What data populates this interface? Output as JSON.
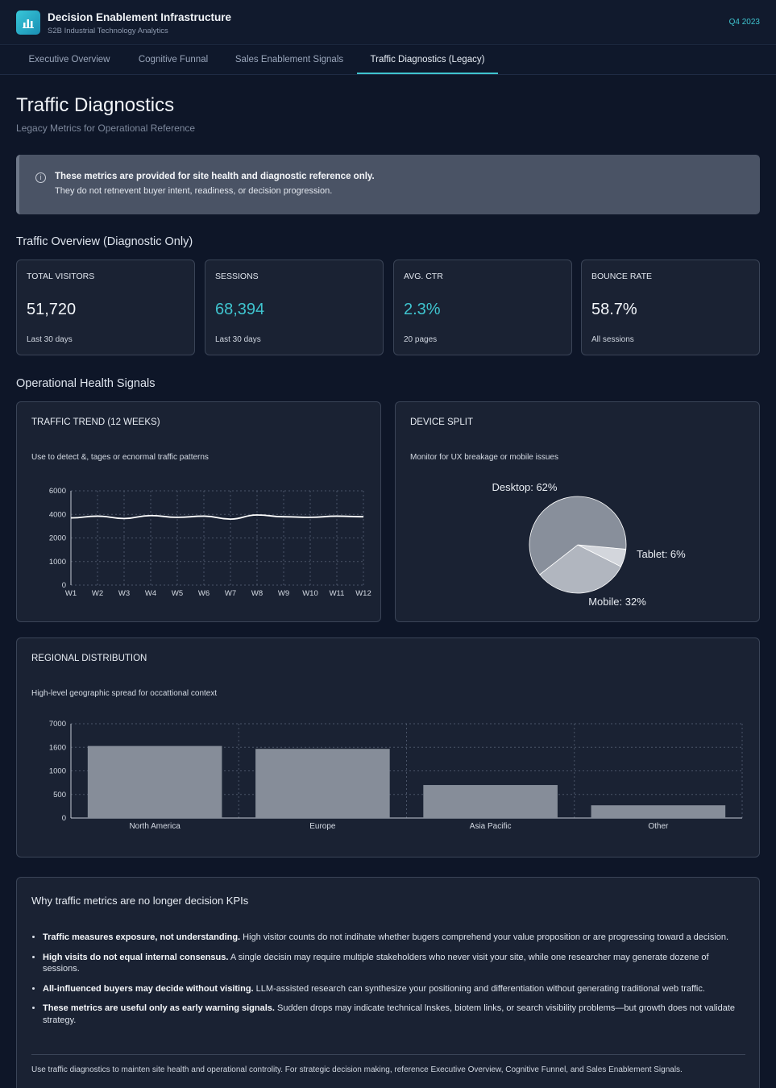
{
  "header": {
    "icon": "bar-chart-icon",
    "title": "Decision Enablement Infrastructure",
    "subtitle": "S2B Industrial Technology Analytics",
    "period": "Q4 2023",
    "accent": "#3fc4cf"
  },
  "tabs": [
    {
      "label": "Executive Overview",
      "active": false
    },
    {
      "label": "Cognitive Funnal",
      "active": false
    },
    {
      "label": "Sales Enablement Signals",
      "active": false
    },
    {
      "label": "Traffic Diagnostics (Legacy)",
      "active": true
    }
  ],
  "page": {
    "title": "Traffic Diagnostics",
    "subtitle": "Legacy Metrics for Operational Reference"
  },
  "notice": {
    "icon": "info-icon",
    "bold": "These metrics are provided for site health and diagnostic reference only.",
    "text": "They do not retnevent buyer intent, readiness, or decision progression."
  },
  "overview": {
    "title": "Traffic Overview (Diagnostic Only)",
    "kpis": [
      {
        "label": "TOTAL VISITORS",
        "value": "51,720",
        "note": "Last 30 days",
        "accent": false
      },
      {
        "label": "SESSIONS",
        "value": "68,394",
        "note": "Last 30 days",
        "accent": true
      },
      {
        "label": "AVG. CTR",
        "value": "2.3%",
        "note": "20 pages",
        "accent": true
      },
      {
        "label": "BOUNCE RATE",
        "value": "58.7%",
        "note": "All sessions",
        "accent": false
      }
    ]
  },
  "health": {
    "title": "Operational Health Signals",
    "trend": {
      "title": "TRAFFIC TREND (12 WEEKS)",
      "note": "Use to detect &, tages or ecnormal traffic patterns"
    },
    "device": {
      "title": "DEVICE SPLIT",
      "note": "Monitor for UX breakage or mobile issues"
    },
    "regional": {
      "title": "REGIONAL DISTRIBUTION",
      "note": "High-level geographic spread for occattional context"
    }
  },
  "chart_data": [
    {
      "type": "line",
      "title": "TRAFFIC TREND (12 WEEKS)",
      "x": [
        "W1",
        "W2",
        "W3",
        "W4",
        "W5",
        "W6",
        "W7",
        "W8",
        "W9",
        "W10",
        "W11",
        "W12"
      ],
      "values": [
        3700,
        3850,
        3650,
        3900,
        3750,
        3850,
        3600,
        3950,
        3800,
        3750,
        3850,
        3800
      ],
      "yticks": [
        0,
        1000,
        2000,
        4000,
        6000
      ],
      "yticklabels": [
        "0",
        "1000",
        "2000",
        "4000",
        "6000"
      ],
      "grid": true,
      "line_color": "#ffffff"
    },
    {
      "type": "pie",
      "title": "DEVICE SPLIT",
      "labels": [
        "Desktop",
        "Mobile",
        "Tablet"
      ],
      "values": [
        62,
        32,
        6
      ],
      "display_labels": [
        "Desktop: 62%",
        "Mobile: 32%",
        "Tablet: 6%"
      ],
      "colors": [
        "#888f9b",
        "#b1b6bf",
        "#d3d6dc"
      ]
    },
    {
      "type": "bar",
      "title": "REGIONAL DISTRIBUTION",
      "categories": [
        "North America",
        "Europe",
        "Asia Pacific",
        "Other"
      ],
      "values": [
        1900,
        1560,
        700,
        270
      ],
      "yticks": [
        0,
        500,
        1000,
        1600,
        7000
      ],
      "yticklabels": [
        "0",
        "500",
        "1000",
        "1600",
        "7000"
      ],
      "grid": true,
      "bar_color": "#868d99"
    }
  ],
  "why": {
    "title": "Why traffic metrics are no longer decision KPIs",
    "items": [
      {
        "bold": "Traffic measures exposure, not understanding.",
        "text": " High visitor counts do not indihate whether bugers comprehend your value proposition or are progressing toward a decision."
      },
      {
        "bold": "High visits do not equal internal consensus.",
        "text": " A single decisin may require multiple stakeholders who never visit your site, while one researcher may generate dozene of sessions."
      },
      {
        "bold": "All-influenced buyers may decide without visiting.",
        "text": " LLM-assisted research can synthesize your positioning and differentiation without generating traditional web traffic."
      },
      {
        "bold": "These metrics are useful only as early warning signals.",
        "text": " Sudden drops may indicate technical lnskes, biotem links, or search visibility problems—but growth does not validate strategy."
      }
    ],
    "footer": "Use traffic diagnostics to mainten site health and operational controlity. For strategic decision making, reference Executive Overview, Cognitive Funnel, and Sales Enablement Signals."
  }
}
